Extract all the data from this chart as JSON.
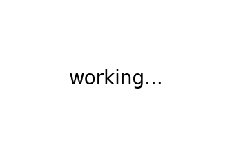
{
  "title": "",
  "bg_color": "#ffffff",
  "line_color": "#000000",
  "line_width": 1.5,
  "fig_width": 3.36,
  "fig_height": 2.27,
  "dpi": 100
}
